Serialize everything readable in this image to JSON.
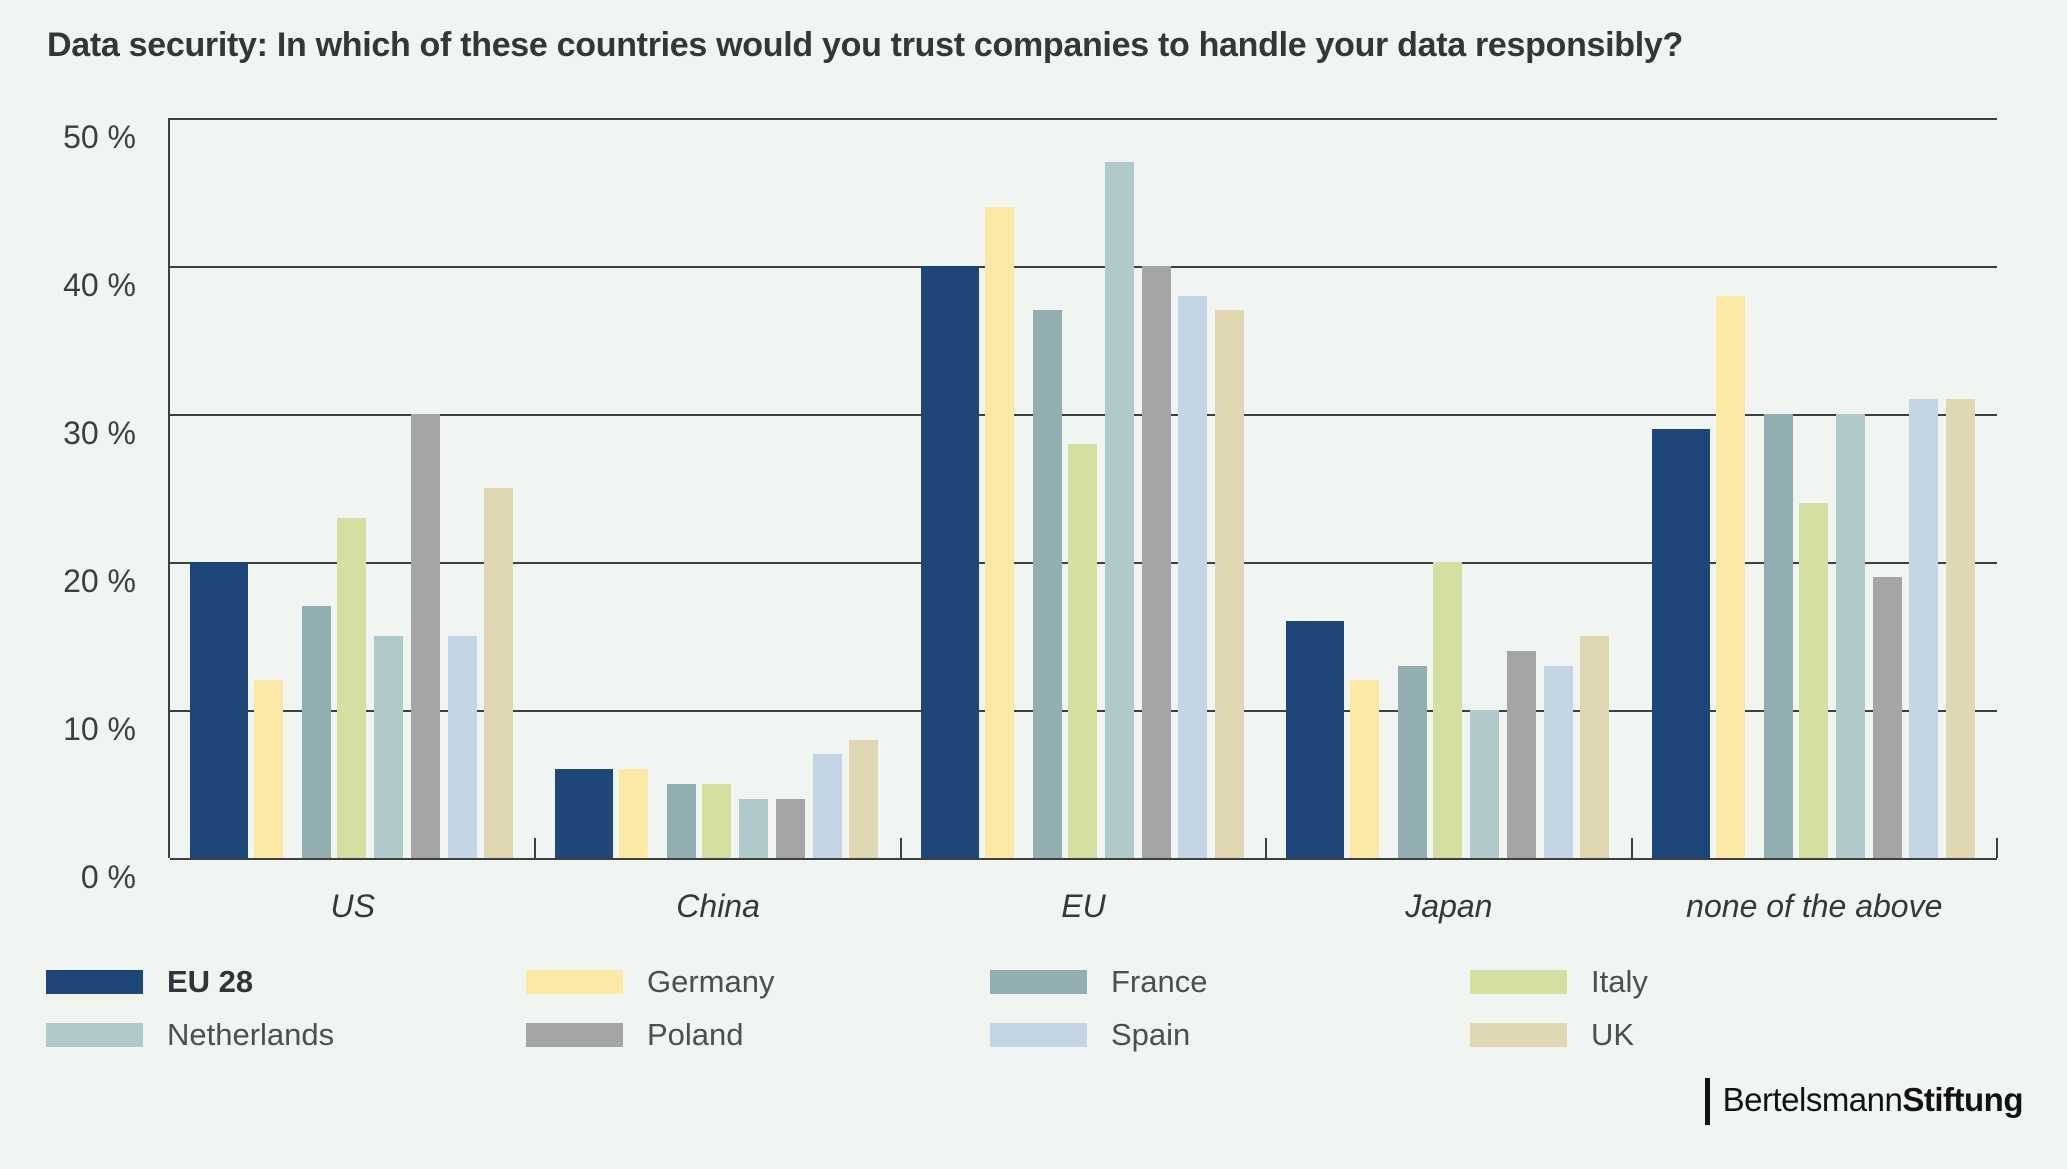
{
  "title": "Data security: In which of these countries would you trust companies to handle your data responsibly?",
  "chart_data": {
    "type": "bar",
    "title": "Data security: In which of these countries would you trust companies to handle your data responsibly?",
    "categories": [
      "US",
      "China",
      "EU",
      "Japan",
      "none of the above"
    ],
    "series": [
      {
        "name": "EU 28",
        "color": "#1e4679",
        "emphasis": true,
        "values": [
          20,
          6,
          40,
          16,
          29
        ]
      },
      {
        "name": "Germany",
        "color": "#fce9a6",
        "emphasis": false,
        "values": [
          12,
          6,
          44,
          12,
          38
        ]
      },
      {
        "name": "France",
        "color": "#92aeb0",
        "emphasis": false,
        "values": [
          17,
          5,
          37,
          13,
          30
        ]
      },
      {
        "name": "Italy",
        "color": "#d6dfa2",
        "emphasis": false,
        "values": [
          23,
          5,
          28,
          20,
          24
        ]
      },
      {
        "name": "Netherlands",
        "color": "#b0c9cb",
        "emphasis": false,
        "values": [
          15,
          4,
          47,
          10,
          30
        ]
      },
      {
        "name": "Poland",
        "color": "#a5a5a8",
        "emphasis": false,
        "values": [
          30,
          4,
          40,
          14,
          19
        ]
      },
      {
        "name": "Spain",
        "color": "#c4d5e6",
        "emphasis": false,
        "values": [
          15,
          7,
          38,
          13,
          31
        ]
      },
      {
        "name": "UK",
        "color": "#e0d7b3",
        "emphasis": false,
        "values": [
          25,
          8,
          37,
          15,
          31
        ]
      }
    ],
    "yticks": [
      50,
      40,
      30,
      20,
      10,
      0
    ],
    "tick_suffix": " %",
    "ylim": [
      0,
      50
    ],
    "xlabel": "",
    "ylabel": "",
    "grid": true,
    "legend_position": "bottom"
  },
  "palette": {
    "background": "#f0f5f1",
    "axis": "#3d4042",
    "title_text": "#33373a",
    "label_text": "#3b3f42",
    "legend_text": "#4b4f52"
  },
  "branding": {
    "separator": "|",
    "name_regular": "Bertelsmann",
    "name_bold": "Stiftung"
  }
}
